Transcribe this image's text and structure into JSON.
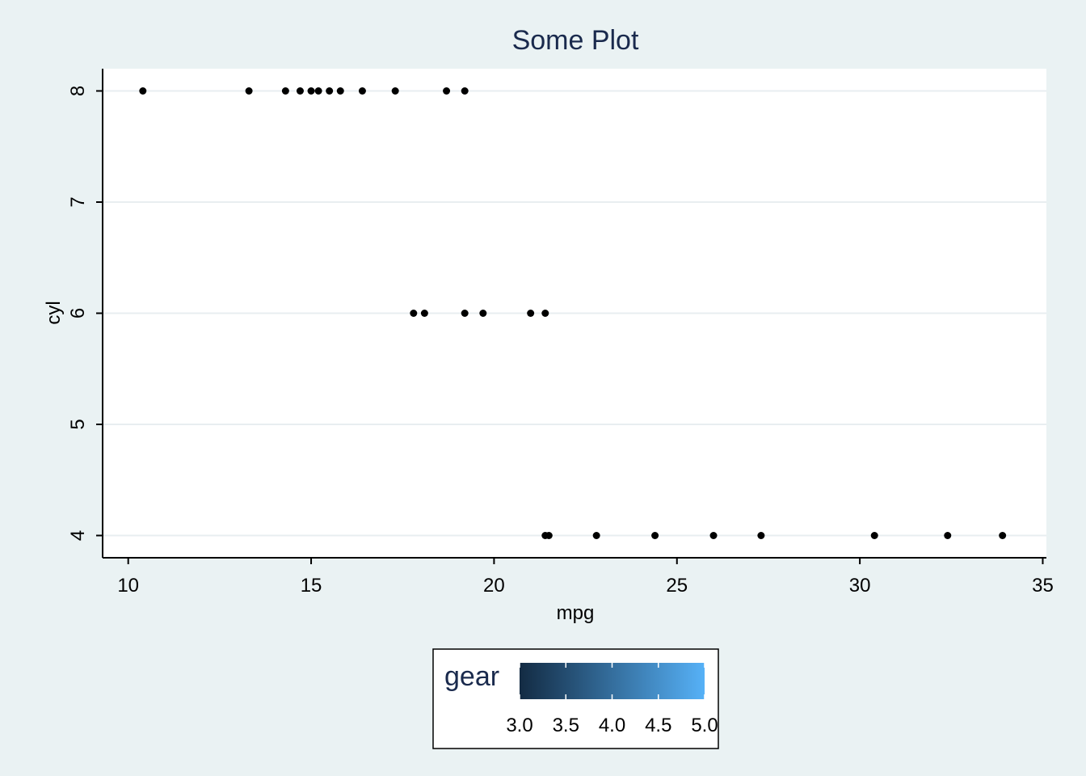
{
  "chart_data": {
    "type": "scatter",
    "title": "Some Plot",
    "xlabel": "mpg",
    "ylabel": "cyl",
    "xlim": [
      9.3,
      35.1
    ],
    "ylim": [
      3.8,
      8.2
    ],
    "xticks": [
      "10",
      "15",
      "20",
      "25",
      "30",
      "35"
    ],
    "yticks": [
      "4",
      "5",
      "6",
      "7",
      "8"
    ],
    "grid": "horizontal",
    "legend": {
      "title": "gear",
      "type": "colorbar",
      "position": "bottom",
      "min": 3.0,
      "max": 5.0,
      "labels": [
        "3.0",
        "3.5",
        "4.0",
        "4.5",
        "5.0"
      ],
      "color_low": "#132b43",
      "color_high": "#56b1f7"
    },
    "colors": {
      "background": "#eaf2f3",
      "plot_background": "#ffffff",
      "gridline": "#e8eef0",
      "point": "#000000",
      "title": "#1a2a4d"
    },
    "points": [
      {
        "x": 10.4,
        "y": 8
      },
      {
        "x": 13.3,
        "y": 8
      },
      {
        "x": 14.3,
        "y": 8
      },
      {
        "x": 14.7,
        "y": 8
      },
      {
        "x": 15.0,
        "y": 8
      },
      {
        "x": 15.2,
        "y": 8
      },
      {
        "x": 15.5,
        "y": 8
      },
      {
        "x": 15.8,
        "y": 8
      },
      {
        "x": 16.4,
        "y": 8
      },
      {
        "x": 17.3,
        "y": 8
      },
      {
        "x": 18.7,
        "y": 8
      },
      {
        "x": 19.2,
        "y": 8
      },
      {
        "x": 17.8,
        "y": 6
      },
      {
        "x": 18.1,
        "y": 6
      },
      {
        "x": 19.2,
        "y": 6
      },
      {
        "x": 19.7,
        "y": 6
      },
      {
        "x": 21.0,
        "y": 6
      },
      {
        "x": 21.4,
        "y": 6
      },
      {
        "x": 21.4,
        "y": 4
      },
      {
        "x": 21.5,
        "y": 4
      },
      {
        "x": 22.8,
        "y": 4
      },
      {
        "x": 24.4,
        "y": 4
      },
      {
        "x": 26.0,
        "y": 4
      },
      {
        "x": 27.3,
        "y": 4
      },
      {
        "x": 30.4,
        "y": 4
      },
      {
        "x": 32.4,
        "y": 4
      },
      {
        "x": 33.9,
        "y": 4
      }
    ]
  }
}
